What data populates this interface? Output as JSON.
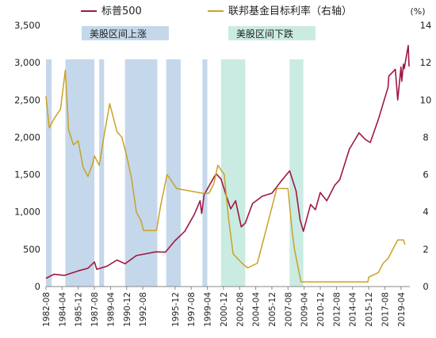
{
  "chart_data": {
    "type": "line",
    "unit_right": "(%)",
    "left_axis": {
      "ylim": [
        0,
        3500
      ],
      "ticks": [
        0,
        500,
        1000,
        1500,
        2000,
        2500,
        3000,
        3500
      ],
      "tick_labels": [
        "0",
        "500",
        "1,000",
        "1,500",
        "2,000",
        "2,500",
        "3,000",
        "3,500"
      ]
    },
    "right_axis": {
      "ylim": [
        0,
        14
      ],
      "ticks": [
        0,
        2,
        4,
        6,
        8,
        10,
        12,
        14
      ],
      "tick_labels": [
        "0",
        "2",
        "4",
        "6",
        "8",
        "10",
        "12",
        "14"
      ]
    },
    "x_axis": {
      "range": [
        "1982-08",
        "2020-03"
      ],
      "tick_labels": [
        "1982-08",
        "1984-04",
        "1985-12",
        "1987-08",
        "1989-04",
        "1990-12",
        "1992-08",
        "1995-12",
        "1997-08",
        "1999-04",
        "2000-12",
        "2002-08",
        "2004-04",
        "2005-12",
        "2007-08",
        "2009-04",
        "2010-12",
        "2012-08",
        "2014-04",
        "2015-12",
        "2017-08",
        "2019-04"
      ],
      "tick_positions": [
        "1982-08",
        "1984-04",
        "1985-12",
        "1987-08",
        "1989-04",
        "1990-12",
        "1992-08",
        "1995-12",
        "1997-08",
        "1999-04",
        "2000-12",
        "2002-08",
        "2004-04",
        "2005-12",
        "2007-08",
        "2009-04",
        "2010-12",
        "2012-08",
        "2014-04",
        "2015-12",
        "2017-08",
        "2019-04"
      ]
    },
    "legend": {
      "position": "top",
      "items": [
        {
          "label": "标普500",
          "color": "#a01842",
          "kind": "line"
        },
        {
          "label": "联邦基金目标利率（右轴）",
          "color": "#c9a227",
          "kind": "line"
        },
        {
          "label": "美股区间上涨",
          "color": "#c5d7ea",
          "kind": "box"
        },
        {
          "label": "美股区间下跌",
          "color": "#c9ebe2",
          "kind": "box"
        }
      ]
    },
    "up_periods": [
      [
        "1982-08",
        "1983-03"
      ],
      [
        "1984-08",
        "1987-08"
      ],
      [
        "1988-02",
        "1988-08"
      ],
      [
        "1990-10",
        "1994-02"
      ],
      [
        "1995-01",
        "1996-07"
      ],
      [
        "1998-10",
        "1999-04"
      ]
    ],
    "down_periods": [
      [
        "2000-09",
        "2003-03"
      ],
      [
        "2007-10",
        "2009-03"
      ]
    ],
    "series": [
      {
        "name": "标普500",
        "axis": "left",
        "color": "#a01842",
        "points": [
          [
            "1982-08",
            110
          ],
          [
            "1983-06",
            165
          ],
          [
            "1984-07",
            150
          ],
          [
            "1985-12",
            210
          ],
          [
            "1986-12",
            245
          ],
          [
            "1987-08",
            330
          ],
          [
            "1987-11",
            230
          ],
          [
            "1988-12",
            275
          ],
          [
            "1989-12",
            355
          ],
          [
            "1990-10",
            305
          ],
          [
            "1991-12",
            415
          ],
          [
            "1993-12",
            465
          ],
          [
            "1994-12",
            460
          ],
          [
            "1995-12",
            615
          ],
          [
            "1996-12",
            740
          ],
          [
            "1997-12",
            970
          ],
          [
            "1998-07",
            1150
          ],
          [
            "1998-09",
            980
          ],
          [
            "1998-12",
            1230
          ],
          [
            "1999-12",
            1460
          ],
          [
            "2000-03",
            1510
          ],
          [
            "2000-09",
            1440
          ],
          [
            "2001-04",
            1200
          ],
          [
            "2001-09",
            1040
          ],
          [
            "2002-03",
            1150
          ],
          [
            "2002-10",
            800
          ],
          [
            "2003-03",
            850
          ],
          [
            "2003-12",
            1110
          ],
          [
            "2004-12",
            1210
          ],
          [
            "2005-12",
            1250
          ],
          [
            "2006-12",
            1420
          ],
          [
            "2007-10",
            1550
          ],
          [
            "2008-06",
            1280
          ],
          [
            "2008-11",
            890
          ],
          [
            "2009-03",
            740
          ],
          [
            "2009-12",
            1100
          ],
          [
            "2010-06",
            1030
          ],
          [
            "2010-12",
            1260
          ],
          [
            "2011-08",
            1150
          ],
          [
            "2012-06",
            1360
          ],
          [
            "2012-12",
            1430
          ],
          [
            "2013-12",
            1840
          ],
          [
            "2014-12",
            2060
          ],
          [
            "2015-08",
            1970
          ],
          [
            "2016-02",
            1930
          ],
          [
            "2016-12",
            2240
          ],
          [
            "2017-12",
            2670
          ],
          [
            "2018-01",
            2820
          ],
          [
            "2018-09",
            2910
          ],
          [
            "2018-12",
            2500
          ],
          [
            "2019-04",
            2940
          ],
          [
            "2019-05",
            2750
          ],
          [
            "2019-07",
            2980
          ],
          [
            "2019-08",
            2920
          ],
          [
            "2020-01",
            3230
          ],
          [
            "2020-02",
            2950
          ]
        ]
      },
      {
        "name": "联邦基金目标利率（右轴）",
        "axis": "right",
        "color": "#c9a227",
        "points": [
          [
            "1982-08",
            10.2
          ],
          [
            "1982-12",
            8.5
          ],
          [
            "1983-06",
            9.0
          ],
          [
            "1984-02",
            9.5
          ],
          [
            "1984-08",
            11.6
          ],
          [
            "1984-12",
            8.4
          ],
          [
            "1985-06",
            7.6
          ],
          [
            "1985-12",
            7.8
          ],
          [
            "1986-06",
            6.4
          ],
          [
            "1986-12",
            5.9
          ],
          [
            "1987-06",
            6.6
          ],
          [
            "1987-08",
            7.0
          ],
          [
            "1988-02",
            6.5
          ],
          [
            "1988-08",
            8.1
          ],
          [
            "1989-03",
            9.8
          ],
          [
            "1989-06",
            9.3
          ],
          [
            "1989-12",
            8.3
          ],
          [
            "1990-06",
            8.0
          ],
          [
            "1990-12",
            7.0
          ],
          [
            "1991-06",
            5.8
          ],
          [
            "1991-12",
            4.0
          ],
          [
            "1992-06",
            3.5
          ],
          [
            "1992-09",
            3.0
          ],
          [
            "1994-01",
            3.0
          ],
          [
            "1994-06",
            4.3
          ],
          [
            "1995-02",
            6.0
          ],
          [
            "1995-07",
            5.7
          ],
          [
            "1996-02",
            5.25
          ],
          [
            "1998-10",
            5.0
          ],
          [
            "1999-06",
            5.0
          ],
          [
            "1999-12",
            5.5
          ],
          [
            "2000-05",
            6.5
          ],
          [
            "2001-01",
            6.0
          ],
          [
            "2001-06",
            3.75
          ],
          [
            "2001-12",
            1.75
          ],
          [
            "2002-11",
            1.25
          ],
          [
            "2003-06",
            1.0
          ],
          [
            "2004-06",
            1.25
          ],
          [
            "2005-06",
            3.25
          ],
          [
            "2006-06",
            5.25
          ],
          [
            "2007-08",
            5.25
          ],
          [
            "2008-01",
            3.0
          ],
          [
            "2008-04",
            2.0
          ],
          [
            "2008-12",
            0.25
          ],
          [
            "2015-11",
            0.25
          ],
          [
            "2015-12",
            0.5
          ],
          [
            "2016-12",
            0.75
          ],
          [
            "2017-06",
            1.25
          ],
          [
            "2017-12",
            1.5
          ],
          [
            "2018-06",
            2.0
          ],
          [
            "2018-12",
            2.5
          ],
          [
            "2019-07",
            2.5
          ],
          [
            "2019-09",
            2.25
          ]
        ]
      }
    ]
  }
}
